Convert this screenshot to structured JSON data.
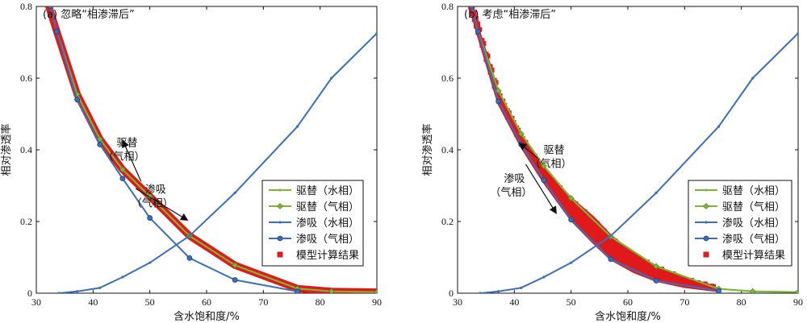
{
  "chart_data": [
    {
      "type": "line",
      "title": "(a) 忽略“相渗滞后”",
      "xlabel": "含水饱和度/%",
      "ylabel": "相对渗透率",
      "xlim": [
        30,
        90
      ],
      "ylim": [
        0,
        0.8
      ],
      "xticks": [
        30,
        40,
        50,
        60,
        70,
        80,
        90
      ],
      "yticks": [
        0,
        0.2,
        0.4,
        0.6,
        0.8
      ],
      "legend_position": "bottom-right",
      "annotations": [
        {
          "text": "驱替",
          "text2": "（气相）",
          "x": 46,
          "y": 0.41,
          "arrow": "up-left"
        },
        {
          "text": "渗吸",
          "text2": "（气相）",
          "x": 51,
          "y": 0.28,
          "arrow": "down-right"
        }
      ],
      "series": [
        {
          "name": "驱替（水相）",
          "color": "#7ab833",
          "marker": "dot",
          "x": [
            32.5,
            33.6,
            37.2,
            41.2,
            45.2,
            50.0,
            57.0,
            65.0,
            76.0,
            82.0,
            90.0
          ],
          "y": [
            0.8,
            0.73,
            0.555,
            0.43,
            0.345,
            0.27,
            0.16,
            0.078,
            0.013,
            0.005,
            0.003
          ]
        },
        {
          "name": "驱替（气相）",
          "color": "#7ab833",
          "marker": "diamond",
          "x": [
            32.5,
            33.6,
            37.2,
            41.2,
            45.2,
            50.0,
            57.0,
            65.0,
            76.0,
            82.0,
            90.0
          ],
          "y": [
            0.8,
            0.73,
            0.555,
            0.43,
            0.345,
            0.27,
            0.16,
            0.078,
            0.013,
            0.005,
            0.003
          ]
        },
        {
          "name": "渗吸（水相）",
          "color": "#3a6fc0",
          "marker": "dot",
          "x": [
            34.0,
            37.2,
            41.2,
            45.2,
            50.0,
            57.0,
            65.0,
            76.0,
            82.0,
            90.0
          ],
          "y": [
            0.0,
            0.005,
            0.015,
            0.045,
            0.085,
            0.16,
            0.28,
            0.465,
            0.6,
            0.725
          ]
        },
        {
          "name": "渗吸（气相）",
          "color": "#3a6fc0",
          "marker": "circle",
          "x": [
            32.5,
            33.6,
            37.2,
            41.2,
            45.2,
            50.0,
            57.0,
            65.0,
            76.0
          ],
          "y": [
            0.8,
            0.73,
            0.54,
            0.415,
            0.32,
            0.21,
            0.098,
            0.037,
            0.005
          ]
        },
        {
          "name": "模型计算结果",
          "color": "#e0191b",
          "marker": "square",
          "x": [
            32.0,
            33.6,
            37.2,
            41.2,
            45.2,
            50.0,
            57.0,
            65.0,
            76.0,
            82.0,
            90.0
          ],
          "y": [
            0.81,
            0.73,
            0.555,
            0.43,
            0.345,
            0.27,
            0.16,
            0.078,
            0.013,
            0.005,
            0.003
          ]
        }
      ]
    },
    {
      "type": "line",
      "title": "(b) 考虑“相渗滞后”",
      "xlabel": "含水饱和度/%",
      "ylabel": "相对渗透率",
      "xlim": [
        30,
        90
      ],
      "ylim": [
        0,
        0.8
      ],
      "xticks": [
        30,
        40,
        50,
        60,
        70,
        80,
        90
      ],
      "yticks": [
        0,
        0.2,
        0.4,
        0.6,
        0.8
      ],
      "legend_position": "bottom-right",
      "annotations": [
        {
          "text": "驱替",
          "text2": "（气相）",
          "x": 47,
          "y": 0.39,
          "arrow": "up-left"
        },
        {
          "text": "渗吸",
          "text2": "（气相）",
          "x": 40,
          "y": 0.31,
          "arrow": "down-right"
        }
      ],
      "series": [
        {
          "name": "驱替（水相）",
          "color": "#7ab833",
          "marker": "dot",
          "x": [
            32.5,
            33.6,
            37.2,
            41.2,
            45.2,
            50.0,
            57.0,
            65.0,
            76.0,
            82.0,
            90.0
          ],
          "y": [
            0.8,
            0.73,
            0.565,
            0.445,
            0.355,
            0.265,
            0.158,
            0.075,
            0.012,
            0.005,
            0.003
          ]
        },
        {
          "name": "驱替（气相）",
          "color": "#7ab833",
          "marker": "diamond",
          "x": [
            32.5,
            33.6,
            37.2,
            41.2,
            45.2,
            50.0,
            57.0,
            65.0,
            76.0,
            82.0,
            90.0
          ],
          "y": [
            0.8,
            0.73,
            0.565,
            0.445,
            0.355,
            0.265,
            0.158,
            0.075,
            0.012,
            0.005,
            0.003
          ]
        },
        {
          "name": "渗吸（水相）",
          "color": "#3a6fc0",
          "marker": "dot",
          "x": [
            34.0,
            37.2,
            41.2,
            45.2,
            50.0,
            57.0,
            65.0,
            76.0,
            82.0,
            90.0
          ],
          "y": [
            0.0,
            0.005,
            0.015,
            0.045,
            0.085,
            0.16,
            0.28,
            0.465,
            0.6,
            0.725
          ]
        },
        {
          "name": "渗吸（气相）",
          "color": "#3a6fc0",
          "marker": "circle",
          "x": [
            32.5,
            33.6,
            37.2,
            41.2,
            45.2,
            50.0,
            57.0,
            65.0,
            76.0
          ],
          "y": [
            0.8,
            0.73,
            0.535,
            0.415,
            0.315,
            0.205,
            0.095,
            0.035,
            0.006
          ]
        },
        {
          "name": "模型计算结果",
          "color": "#e0191b",
          "marker": "square",
          "x": [
            32.0,
            33.6,
            37.2,
            41.2,
            45.2,
            50.0,
            54.0,
            57.0,
            61.0,
            65.0,
            70.0,
            76.0
          ],
          "y_low": [
            0.81,
            0.72,
            0.53,
            0.41,
            0.31,
            0.205,
            0.14,
            0.095,
            0.06,
            0.035,
            0.018,
            0.006
          ],
          "y_high": [
            0.81,
            0.74,
            0.56,
            0.44,
            0.345,
            0.265,
            0.21,
            0.16,
            0.11,
            0.075,
            0.04,
            0.012
          ]
        }
      ]
    }
  ]
}
